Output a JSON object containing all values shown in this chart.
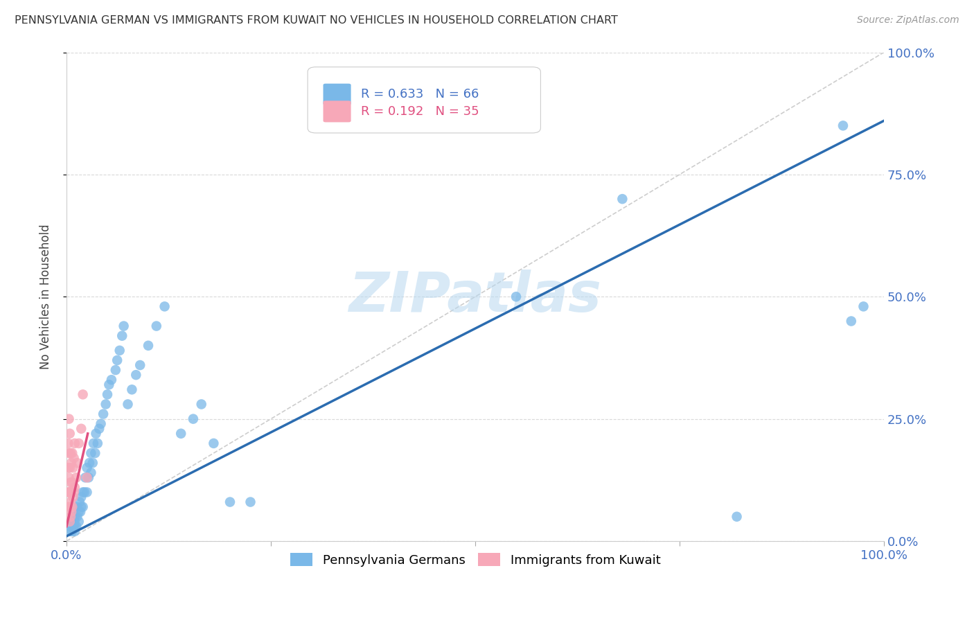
{
  "title": "PENNSYLVANIA GERMAN VS IMMIGRANTS FROM KUWAIT NO VEHICLES IN HOUSEHOLD CORRELATION CHART",
  "source": "Source: ZipAtlas.com",
  "ylabel": "No Vehicles in Household",
  "watermark_text": "ZIPatlas",
  "legend_blue_label": "R = 0.633   N = 66",
  "legend_pink_label": "R = 0.192   N = 35",
  "legend_blue_sub": "Pennsylvania Germans",
  "legend_pink_sub": "Immigrants from Kuwait",
  "blue_color": "#7ab8e8",
  "pink_color": "#f7a8b8",
  "blue_line_color": "#2b6cb0",
  "pink_line_color": "#e05080",
  "diag_color": "#c8c8c8",
  "text_color": "#4472c4",
  "title_color": "#333333",
  "source_color": "#999999",
  "background": "#ffffff",
  "grid_color": "#d0d0d0",
  "blue_x": [
    0.005,
    0.005,
    0.005,
    0.007,
    0.008,
    0.008,
    0.008,
    0.01,
    0.01,
    0.01,
    0.01,
    0.012,
    0.013,
    0.013,
    0.015,
    0.015,
    0.016,
    0.017,
    0.018,
    0.018,
    0.02,
    0.02,
    0.022,
    0.023,
    0.025,
    0.025,
    0.027,
    0.028,
    0.03,
    0.03,
    0.032,
    0.033,
    0.035,
    0.036,
    0.038,
    0.04,
    0.042,
    0.045,
    0.048,
    0.05,
    0.052,
    0.055,
    0.06,
    0.062,
    0.065,
    0.068,
    0.07,
    0.075,
    0.08,
    0.085,
    0.09,
    0.1,
    0.11,
    0.12,
    0.14,
    0.155,
    0.165,
    0.18,
    0.2,
    0.225,
    0.55,
    0.68,
    0.82,
    0.95,
    0.96,
    0.975
  ],
  "blue_y": [
    0.02,
    0.03,
    0.04,
    0.02,
    0.03,
    0.04,
    0.05,
    0.02,
    0.03,
    0.04,
    0.05,
    0.03,
    0.05,
    0.07,
    0.04,
    0.06,
    0.08,
    0.06,
    0.07,
    0.09,
    0.07,
    0.1,
    0.1,
    0.13,
    0.1,
    0.15,
    0.13,
    0.16,
    0.14,
    0.18,
    0.16,
    0.2,
    0.18,
    0.22,
    0.2,
    0.23,
    0.24,
    0.26,
    0.28,
    0.3,
    0.32,
    0.33,
    0.35,
    0.37,
    0.39,
    0.42,
    0.44,
    0.28,
    0.31,
    0.34,
    0.36,
    0.4,
    0.44,
    0.48,
    0.22,
    0.25,
    0.28,
    0.2,
    0.08,
    0.08,
    0.5,
    0.7,
    0.05,
    0.85,
    0.45,
    0.48
  ],
  "pink_x": [
    0.002,
    0.002,
    0.002,
    0.003,
    0.003,
    0.003,
    0.003,
    0.003,
    0.004,
    0.004,
    0.004,
    0.004,
    0.004,
    0.005,
    0.005,
    0.005,
    0.005,
    0.006,
    0.006,
    0.006,
    0.007,
    0.007,
    0.007,
    0.008,
    0.008,
    0.009,
    0.009,
    0.01,
    0.01,
    0.012,
    0.013,
    0.015,
    0.018,
    0.02,
    0.025
  ],
  "pink_y": [
    0.1,
    0.15,
    0.2,
    0.07,
    0.1,
    0.13,
    0.18,
    0.25,
    0.04,
    0.07,
    0.1,
    0.15,
    0.22,
    0.05,
    0.08,
    0.12,
    0.18,
    0.06,
    0.1,
    0.16,
    0.07,
    0.12,
    0.18,
    0.09,
    0.15,
    0.1,
    0.17,
    0.11,
    0.2,
    0.13,
    0.16,
    0.2,
    0.23,
    0.3,
    0.13
  ],
  "blue_line": [
    0.0,
    1.0,
    0.01,
    0.86
  ],
  "pink_line": [
    0.0,
    0.026,
    0.03,
    0.22
  ],
  "xlim": [
    0.0,
    1.0
  ],
  "ylim": [
    0.0,
    1.0
  ],
  "xticks": [
    0.0,
    0.25,
    0.5,
    0.75,
    1.0
  ],
  "yticks": [
    0.0,
    0.25,
    0.5,
    0.75,
    1.0
  ]
}
